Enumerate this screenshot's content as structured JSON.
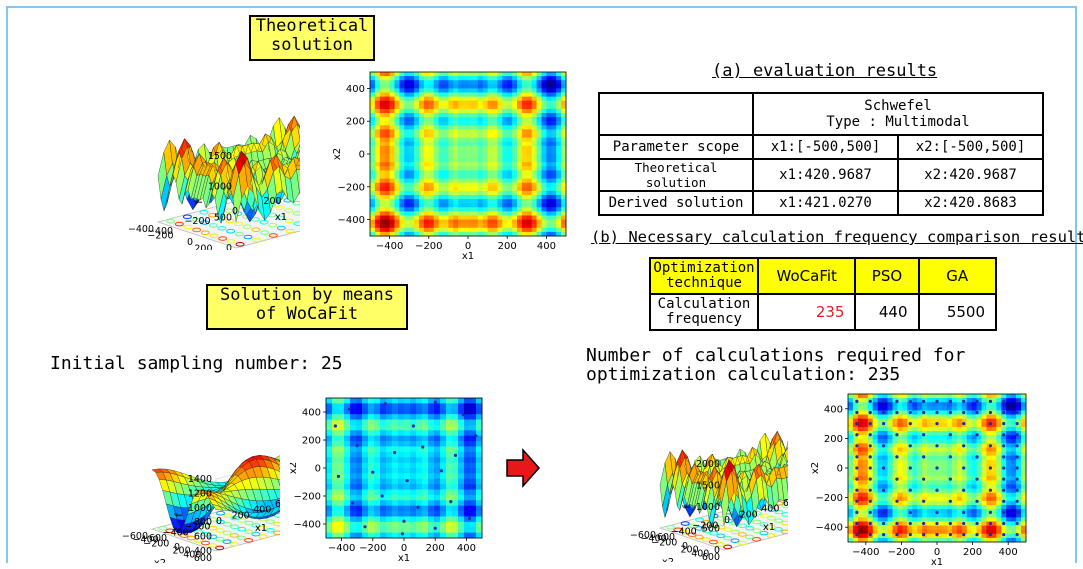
{
  "labels": {
    "theoretical_box": [
      "Theoretical",
      "solution"
    ],
    "wocafit_box": [
      "Solution by means",
      "of WoCaFit"
    ],
    "initial_sampling": "Initial sampling number: 25",
    "calc_required": [
      "Number of calculations required for",
      "optimization calculation: 235"
    ]
  },
  "eval_table": {
    "title": "(a) evaluation results",
    "header": [
      "Schwefel",
      "Type : Multimodal"
    ],
    "rows": [
      {
        "label": "Parameter scope",
        "x1": "x1:[-500,500]",
        "x2": "x2:[-500,500]"
      },
      {
        "label": "Theoretical solution",
        "x1": "x1:420.9687",
        "x2": "x2:420.9687"
      },
      {
        "label": "Derived solution",
        "x1": "x1:421.0270",
        "x2": "x2:420.8683"
      }
    ]
  },
  "comparison_table": {
    "title": "(b) Necessary calculation frequency comparison results",
    "header": [
      "Optimization technique",
      "WoCaFit",
      "PSO",
      "GA"
    ],
    "row_label": "Calculation frequency",
    "values": [
      "235",
      "440",
      "5500"
    ],
    "highlight_color": "#e02020"
  },
  "plots": {
    "theoretical_3d": {
      "f_ticks": [
        "1500",
        "1000",
        "500",
        "0"
      ],
      "x2_ticks": [
        "400",
        "200",
        "0",
        "−200",
        "−400"
      ],
      "x1_ticks": [
        "−400",
        "−200",
        "0",
        "200",
        "400"
      ],
      "f_label": "f",
      "x2_label": "x2",
      "x1_label": "x1"
    },
    "theoretical_contour": {
      "y_ticks": [
        "400",
        "200",
        "0",
        "−200",
        "−400"
      ],
      "x_ticks": [
        "−400",
        "−200",
        "0",
        "200",
        "400"
      ],
      "y_label": "x2",
      "x_label": "x1"
    },
    "initial_3d": {
      "f_ticks": [
        "1400",
        "1200",
        "1000",
        "800",
        "600",
        "400"
      ],
      "x2_ticks": [
        "600",
        "400",
        "200",
        "0",
        "−200",
        "−400",
        "−600"
      ],
      "x1_ticks": [
        "−600",
        "−400",
        "−200",
        "0",
        "200",
        "400",
        "600"
      ],
      "f_label": "f",
      "x2_label": "x2",
      "x1_label": "x1"
    },
    "initial_contour": {
      "y_ticks": [
        "400",
        "200",
        "0",
        "−200",
        "−400"
      ],
      "x_ticks": [
        "−400",
        "−200",
        "0",
        "200",
        "400"
      ],
      "y_label": "x2",
      "x_label": "x1"
    },
    "final_3d": {
      "f_ticks": [
        "2000",
        "1500",
        "1000",
        "500",
        "0"
      ],
      "x2_ticks": [
        "600",
        "400",
        "200",
        "0",
        "−200",
        "−400",
        "−600"
      ],
      "x1_ticks": [
        "−600",
        "−400",
        "−200",
        "0",
        "200",
        "400",
        "600"
      ],
      "f_label": "f",
      "x2_label": "x2",
      "x1_label": "x1"
    },
    "final_contour": {
      "y_ticks": [
        "400",
        "200",
        "0",
        "−200",
        "−400"
      ],
      "x_ticks": [
        "−400",
        "−200",
        "0",
        "200",
        "400"
      ],
      "y_label": "x2",
      "x_label": "x1"
    }
  },
  "colors": {
    "arrow": "#e81818",
    "label_box": "#ffff66",
    "frame": "#7ec8f0"
  }
}
